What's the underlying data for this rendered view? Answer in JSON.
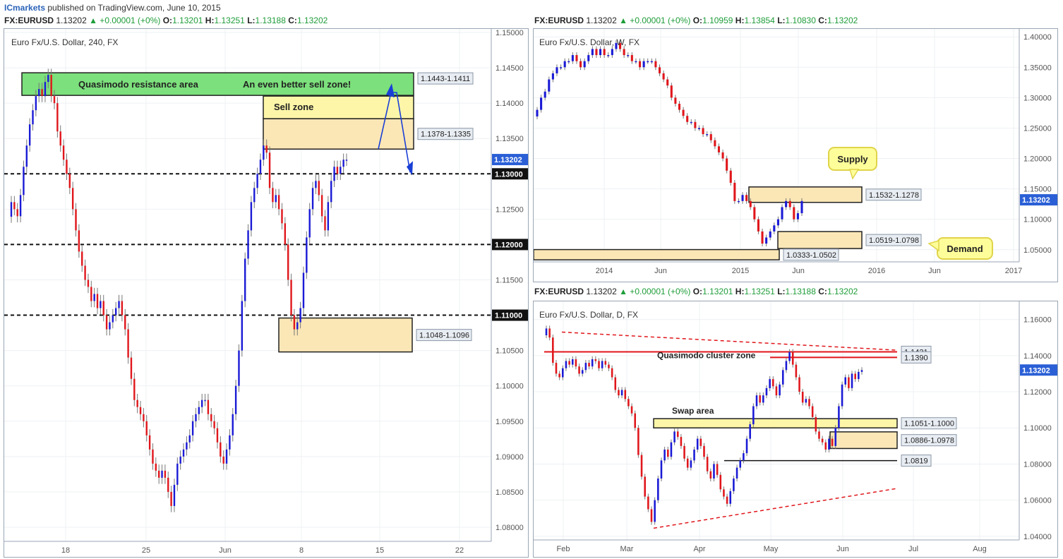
{
  "header": {
    "publisher": "ICmarkets",
    "text": " published on TradingView.com, June 10, 2015"
  },
  "panels": {
    "h4": {
      "quote": {
        "sym": "FX:EURUSD",
        "price": "1.13202",
        "chg": "▲ +0.00001 (+0%)",
        "O": "1.13201",
        "H": "1.13251",
        "L": "1.13188",
        "C": "1.13202"
      },
      "title": "Euro Fx/U.S. Dollar, 240, FX"
    },
    "w": {
      "quote": {
        "sym": "FX:EURUSD",
        "price": "1.13202",
        "chg": "▲ +0.00001 (+0%)",
        "O": "1.10959",
        "H": "1.13854",
        "L": "1.10830",
        "C": "1.13202"
      },
      "title": "Euro Fx/U.S. Dollar, W, FX"
    },
    "d": {
      "quote": {
        "sym": "FX:EURUSD",
        "price": "1.13202",
        "chg": "▲ +0.00001 (+0%)",
        "O": "1.13201",
        "H": "1.13251",
        "L": "1.13188",
        "C": "1.13202"
      },
      "title": "Euro Fx/U.S. Dollar, D, FX"
    }
  },
  "colors": {
    "bull": "#1a1ad6",
    "bear": "#e0161b",
    "zone": "#fbe7b6",
    "zone_yellow": "#fdf6a8",
    "zone_green": "#7ce07c",
    "last_price": "#2a5fd6"
  },
  "chart_data": [
    {
      "type": "candlestick",
      "panel": "h4",
      "ylim": [
        1.078,
        1.1505
      ],
      "y_ticks": [
        "1.15000",
        "1.14500",
        "1.14000",
        "1.13500",
        "1.13000",
        "1.12500",
        "1.12000",
        "1.11500",
        "1.11000",
        "1.10500",
        "1.10000",
        "1.09500",
        "1.09000",
        "1.08500",
        "1.08000"
      ],
      "x_ticks": [
        "18",
        "25",
        "Jun",
        "8",
        "15",
        "22"
      ],
      "last_price": "1.13202",
      "levels": [
        "1.13000",
        "1.12000",
        "1.11000"
      ],
      "zones": [
        {
          "label": "1.1443-1.1411",
          "top": 1.1443,
          "bottom": 1.1411
        },
        {
          "label": "1.1378-1.1335",
          "top": 1.1378,
          "bottom": 1.1335
        },
        {
          "label": "1.1048-1.1096",
          "top": 1.1096,
          "bottom": 1.1048
        }
      ],
      "annotations": [
        "Quasimodo resistance area",
        "An even better sell zone!",
        "Sell zone"
      ],
      "close": [
        1.126,
        1.125,
        1.124,
        1.127,
        1.131,
        1.134,
        1.137,
        1.139,
        1.141,
        1.142,
        1.141,
        1.143,
        1.144,
        1.141,
        1.14,
        1.136,
        1.134,
        1.132,
        1.13,
        1.128,
        1.125,
        1.122,
        1.119,
        1.117,
        1.115,
        1.114,
        1.112,
        1.113,
        1.111,
        1.112,
        1.11,
        1.108,
        1.109,
        1.11,
        1.111,
        1.112,
        1.11,
        1.108,
        1.104,
        1.101,
        1.098,
        1.097,
        1.096,
        1.095,
        1.093,
        1.091,
        1.089,
        1.088,
        1.087,
        1.088,
        1.087,
        1.085,
        1.083,
        1.086,
        1.089,
        1.09,
        1.091,
        1.092,
        1.093,
        1.095,
        1.096,
        1.097,
        1.098,
        1.098,
        1.096,
        1.095,
        1.094,
        1.092,
        1.09,
        1.089,
        1.091,
        1.093,
        1.096,
        1.1,
        1.105,
        1.112,
        1.118,
        1.122,
        1.126,
        1.128,
        1.13,
        1.132,
        1.134,
        1.133,
        1.128,
        1.126,
        1.127,
        1.125,
        1.123,
        1.12,
        1.115,
        1.11,
        1.108,
        1.109,
        1.111,
        1.116,
        1.121,
        1.125,
        1.128,
        1.129,
        1.127,
        1.124,
        1.122,
        1.126,
        1.129,
        1.131,
        1.13,
        1.131,
        1.132,
        1.132
      ]
    },
    {
      "type": "candlestick",
      "panel": "w",
      "ylim": [
        1.03,
        1.413
      ],
      "y_ticks": [
        "1.40000",
        "1.35000",
        "1.30000",
        "1.25000",
        "1.20000",
        "1.15000",
        "1.10000",
        "1.05000"
      ],
      "x_ticks": [
        "2014",
        "Jun",
        "2015",
        "Jun",
        "2016",
        "Jun",
        "2017"
      ],
      "last_price": "1.13202",
      "zones": [
        {
          "label": "1.1532-1.1278",
          "top": 1.1532,
          "bottom": 1.1278
        },
        {
          "label": "1.0519-1.0798",
          "top": 1.0798,
          "bottom": 1.0519
        },
        {
          "label": "1.0333-1.0502",
          "top": 1.0502,
          "bottom": 1.0333
        }
      ],
      "annotations": [
        "Supply",
        "Demand"
      ],
      "close": [
        1.28,
        1.3,
        1.31,
        1.33,
        1.34,
        1.35,
        1.35,
        1.36,
        1.36,
        1.37,
        1.36,
        1.35,
        1.36,
        1.37,
        1.38,
        1.37,
        1.38,
        1.37,
        1.37,
        1.38,
        1.39,
        1.38,
        1.37,
        1.37,
        1.36,
        1.36,
        1.35,
        1.36,
        1.36,
        1.36,
        1.35,
        1.34,
        1.33,
        1.32,
        1.3,
        1.29,
        1.28,
        1.27,
        1.26,
        1.26,
        1.25,
        1.25,
        1.24,
        1.24,
        1.23,
        1.22,
        1.21,
        1.2,
        1.18,
        1.16,
        1.13,
        1.13,
        1.14,
        1.13,
        1.12,
        1.1,
        1.08,
        1.06,
        1.07,
        1.08,
        1.09,
        1.1,
        1.12,
        1.13,
        1.12,
        1.1,
        1.11,
        1.13
      ]
    },
    {
      "type": "candlestick",
      "panel": "d",
      "ylim": [
        1.038,
        1.17
      ],
      "y_ticks": [
        "1.16000",
        "1.14000",
        "1.12000",
        "1.10000",
        "1.08000",
        "1.06000",
        "1.04000"
      ],
      "x_ticks": [
        "Feb",
        "Mar",
        "Apr",
        "May",
        "Jun",
        "Jul",
        "Aug"
      ],
      "last_price": "1.13202",
      "levels": [
        "1.1421",
        "1.1390",
        "1.0819"
      ],
      "zones": [
        {
          "label": "1.1051-1.1000",
          "top": 1.1051,
          "bottom": 1.1
        },
        {
          "label": "1.0886-1.0978",
          "top": 1.0978,
          "bottom": 1.0886
        }
      ],
      "annotations": [
        "Quasimodo cluster zone",
        "Swap area"
      ],
      "close": [
        1.155,
        1.15,
        1.136,
        1.13,
        1.128,
        1.133,
        1.137,
        1.135,
        1.138,
        1.134,
        1.13,
        1.132,
        1.136,
        1.134,
        1.138,
        1.137,
        1.133,
        1.137,
        1.135,
        1.133,
        1.128,
        1.121,
        1.118,
        1.121,
        1.116,
        1.112,
        1.108,
        1.1,
        1.085,
        1.073,
        1.062,
        1.055,
        1.048,
        1.06,
        1.072,
        1.082,
        1.088,
        1.084,
        1.092,
        1.098,
        1.095,
        1.09,
        1.083,
        1.078,
        1.082,
        1.088,
        1.094,
        1.09,
        1.084,
        1.076,
        1.072,
        1.08,
        1.074,
        1.066,
        1.062,
        1.058,
        1.065,
        1.072,
        1.078,
        1.082,
        1.086,
        1.094,
        1.102,
        1.112,
        1.118,
        1.114,
        1.118,
        1.122,
        1.127,
        1.123,
        1.118,
        1.124,
        1.132,
        1.137,
        1.142,
        1.135,
        1.128,
        1.12,
        1.114,
        1.116,
        1.112,
        1.106,
        1.098,
        1.094,
        1.092,
        1.088,
        1.094,
        1.09,
        1.1,
        1.112,
        1.124,
        1.128,
        1.122,
        1.13,
        1.127,
        1.131,
        1.132
      ]
    }
  ]
}
